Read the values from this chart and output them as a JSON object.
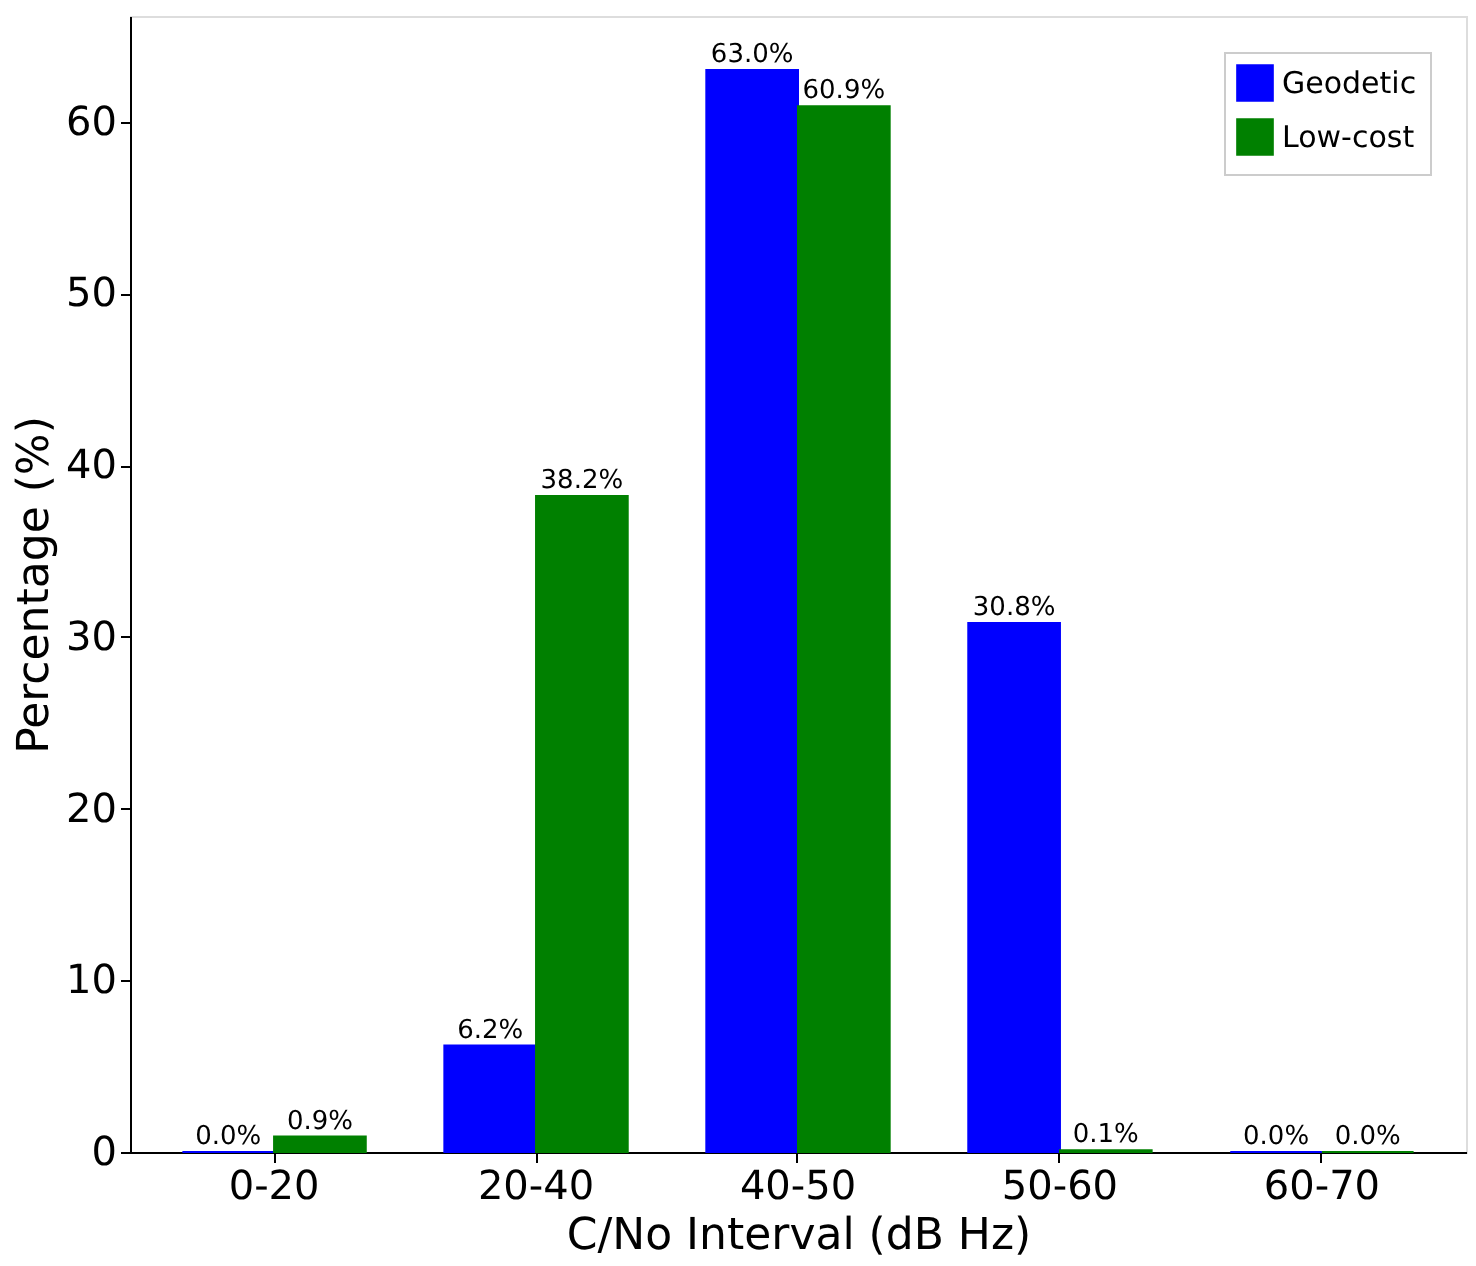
{
  "chart_data": {
    "type": "bar",
    "xlabel": "C/No Interval (dB Hz)",
    "ylabel": "Percentage (%)",
    "categories": [
      "0-20",
      "20-40",
      "40-50",
      "50-60",
      "60-70"
    ],
    "series": [
      {
        "name": "Geodetic",
        "color": "#0000ff",
        "values": [
          0.0,
          6.2,
          63.0,
          30.8,
          0.0
        ],
        "value_labels": [
          "0.0%",
          "6.2%",
          "63.0%",
          "30.8%",
          "0.0%"
        ]
      },
      {
        "name": "Low-cost",
        "color": "#008000",
        "values": [
          0.9,
          38.2,
          60.9,
          0.1,
          0.0
        ],
        "value_labels": [
          "0.9%",
          "38.2%",
          "60.9%",
          "0.1%",
          "0.0%"
        ]
      }
    ],
    "ylim": [
      0,
      66.15
    ],
    "yticks": [
      0,
      10,
      20,
      30,
      40,
      50,
      60
    ],
    "grid": false,
    "legend": "top right"
  }
}
